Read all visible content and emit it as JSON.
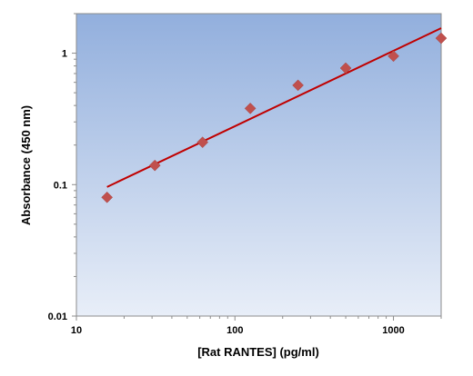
{
  "chart_data": {
    "type": "scatter",
    "xlabel": "[Rat RANTES] (pg/ml)",
    "ylabel": "Absorbance (450 nm)",
    "x_scale": "log",
    "y_scale": "log",
    "xlim": [
      10,
      2000
    ],
    "ylim": [
      0.01,
      2
    ],
    "x_ticks": [
      {
        "value": 10,
        "label": "10"
      },
      {
        "value": 100,
        "label": "100"
      },
      {
        "value": 1000,
        "label": "1000"
      }
    ],
    "y_ticks": [
      {
        "value": 1,
        "label": "1"
      },
      {
        "value": 0.1,
        "label": "0.1"
      },
      {
        "value": 0.01,
        "label": "0.01"
      }
    ],
    "grid": false,
    "legend": "none",
    "series": [
      {
        "kind": "points",
        "marker": "diamond",
        "color": "#C0504D",
        "x": [
          15.6,
          31.25,
          62.5,
          125,
          250,
          500,
          1000,
          2000
        ],
        "y": [
          0.08,
          0.14,
          0.21,
          0.38,
          0.57,
          0.77,
          0.95,
          1.3
        ]
      },
      {
        "kind": "fit_line",
        "color": "#C00000",
        "x": [
          15.6,
          2000
        ],
        "y": [
          0.096,
          1.55
        ]
      }
    ],
    "background_gradient": [
      "#92AFDD",
      "#E8EEF8"
    ]
  }
}
